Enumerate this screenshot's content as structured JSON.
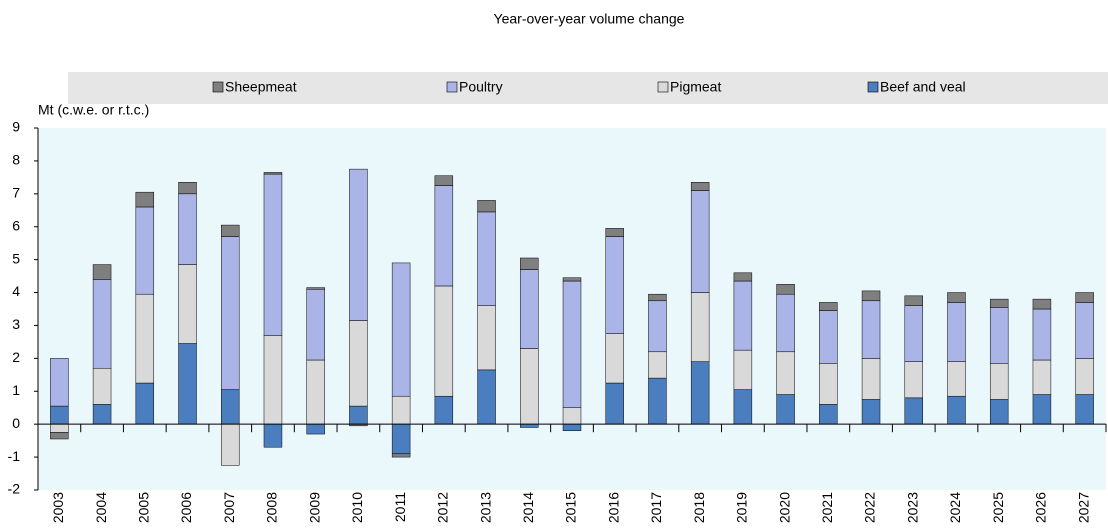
{
  "chart_data": {
    "type": "stacked-bar",
    "title": "Year-over-year volume change",
    "y_label": "Mt (c.w.e. or r.t.c.)",
    "categories": [
      "2003",
      "2004",
      "2005",
      "2006",
      "2007",
      "2008",
      "2009",
      "2010",
      "2011",
      "2012",
      "2013",
      "2014",
      "2015",
      "2016",
      "2017",
      "2018",
      "2019",
      "2020",
      "2021",
      "2022",
      "2023",
      "2024",
      "2025",
      "2026",
      "2027"
    ],
    "series": [
      {
        "name": "Sheepmeat",
        "color": "#7f7f7f",
        "values": [
          -0.2,
          0.45,
          0.45,
          0.35,
          0.35,
          0.05,
          0.05,
          -0.05,
          -0.1,
          0.3,
          0.35,
          0.35,
          0.1,
          0.25,
          0.2,
          0.25,
          0.25,
          0.3,
          0.25,
          0.3,
          0.3,
          0.3,
          0.25,
          0.3,
          0.3
        ]
      },
      {
        "name": "Poultry",
        "color": "#aab4e6",
        "values": [
          1.45,
          2.7,
          2.65,
          2.15,
          4.65,
          4.9,
          2.15,
          4.6,
          4.05,
          3.05,
          2.85,
          2.4,
          3.85,
          2.95,
          1.55,
          3.1,
          2.1,
          1.75,
          1.6,
          1.75,
          1.7,
          1.8,
          1.7,
          1.55,
          1.7
        ]
      },
      {
        "name": "Pigmeat",
        "color": "#d9d9d9",
        "values": [
          -0.25,
          1.1,
          2.7,
          2.4,
          -1.25,
          2.7,
          1.95,
          2.6,
          0.85,
          3.35,
          1.95,
          2.3,
          0.5,
          1.5,
          0.8,
          2.1,
          1.2,
          1.3,
          1.25,
          1.25,
          1.1,
          1.05,
          1.1,
          1.05,
          1.1
        ]
      },
      {
        "name": "Beef and veal",
        "color": "#4a7ebf",
        "values": [
          0.55,
          0.6,
          1.25,
          2.45,
          1.05,
          -0.7,
          -0.3,
          0.55,
          -0.9,
          0.85,
          1.65,
          -0.1,
          -0.2,
          1.25,
          1.4,
          1.9,
          1.05,
          0.9,
          0.6,
          0.75,
          0.8,
          0.85,
          0.75,
          0.9,
          0.9
        ]
      }
    ],
    "ylim": [
      -2,
      9
    ],
    "yticks": [
      -2,
      -1,
      0,
      1,
      2,
      3,
      4,
      5,
      6,
      7,
      8,
      9
    ],
    "plot_background": "#eaf7fb"
  }
}
